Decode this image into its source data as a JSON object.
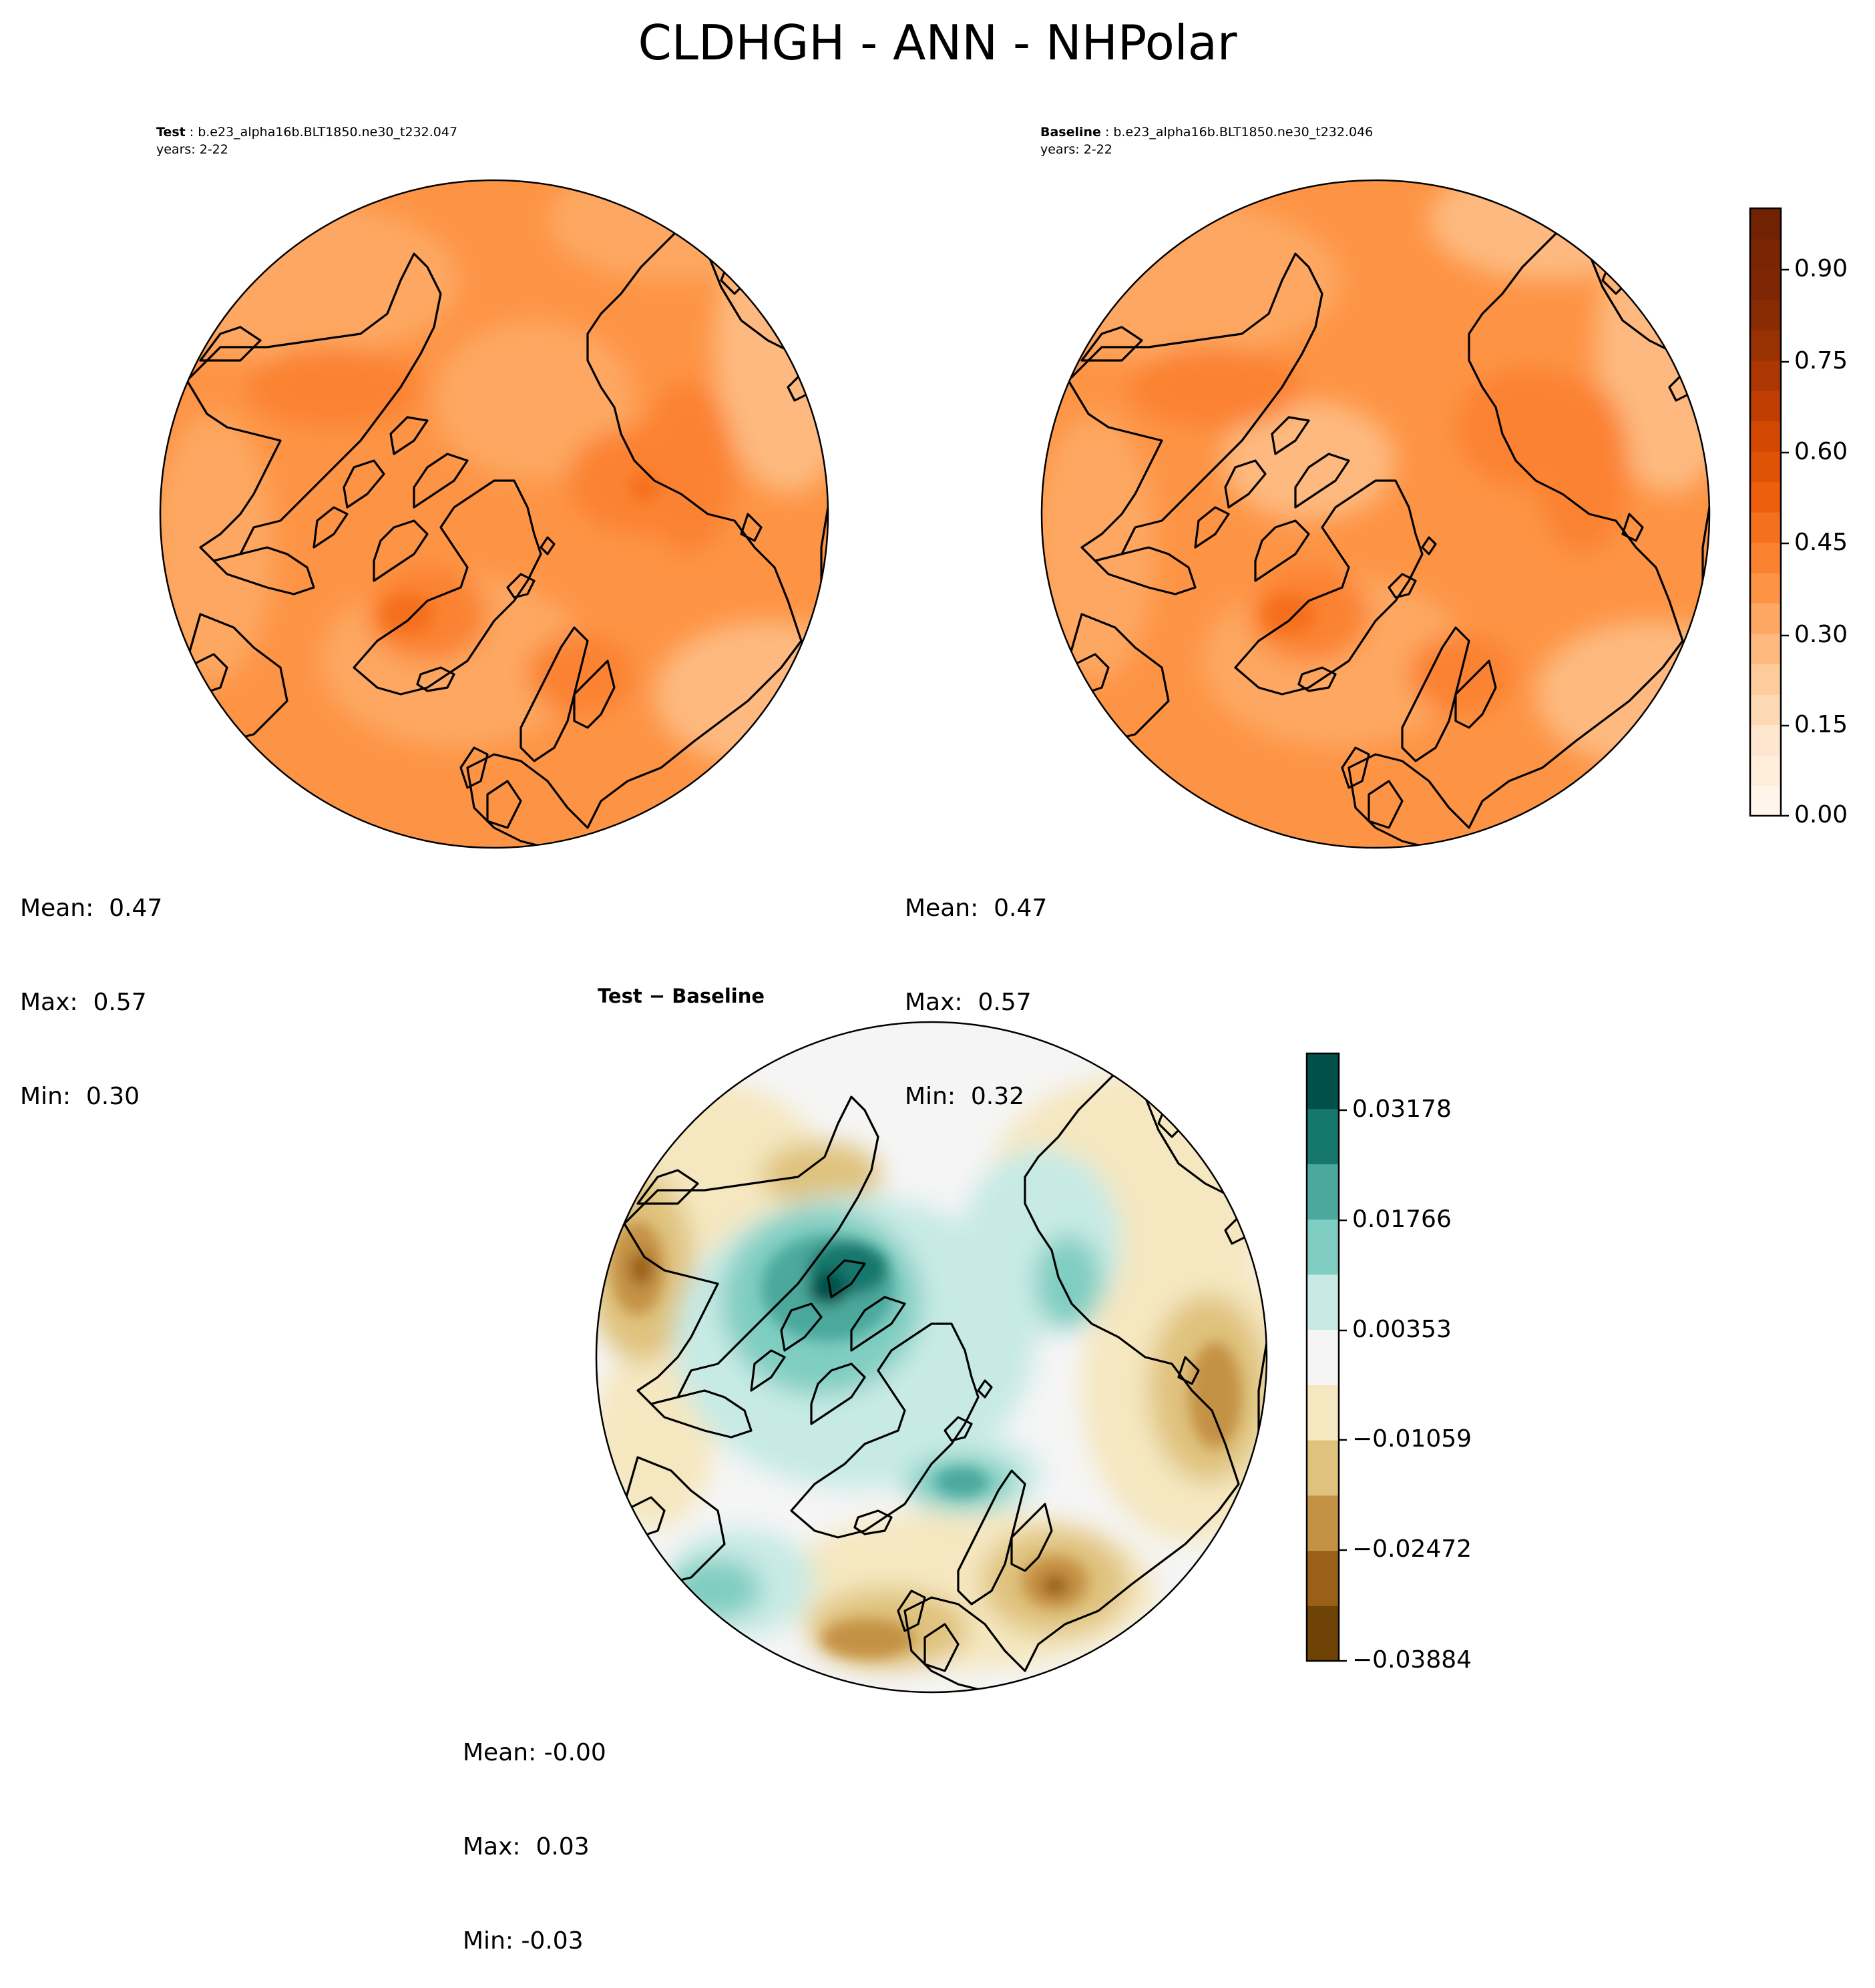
{
  "figure": {
    "title": "CLDHGH - ANN - NHPolar"
  },
  "panels": {
    "test": {
      "label": "Test",
      "case": "b.e23_alpha16b.BLT1850.ne30_t232.047",
      "years": "years: 2-22",
      "stats": {
        "mean": "Mean:  0.47",
        "max": "Max:  0.57",
        "min": "Min:  0.30"
      }
    },
    "baseline": {
      "label": "Baseline",
      "case": "b.e23_alpha16b.BLT1850.ne30_t232.046",
      "years": "years: 2-22",
      "stats": {
        "mean": "Mean:  0.47",
        "max": "Max:  0.57",
        "min": "Min:  0.32"
      }
    },
    "diff": {
      "title": "Test − Baseline",
      "stats": {
        "mean": "Mean: -0.00",
        "max": "Max:  0.03",
        "min": "Min: -0.03"
      }
    }
  },
  "colorbars": {
    "main": {
      "ticks": [
        "0.90",
        "0.75",
        "0.60",
        "0.45",
        "0.30",
        "0.15",
        "0.00"
      ],
      "levels": 20,
      "range": [
        0.0,
        1.0
      ],
      "colors": [
        "#fff5eb",
        "#ffeeda",
        "#fee6ce",
        "#fdd9b4",
        "#fdcc9a",
        "#fdb97f",
        "#fda762",
        "#fd9445",
        "#fb8230",
        "#f5701d",
        "#ed5f0c",
        "#e05206",
        "#d24803",
        "#c03e02",
        "#ac3702",
        "#9a3103",
        "#8a2c03",
        "#7f2704",
        "#7a2503",
        "#712203"
      ]
    },
    "diff": {
      "ticks": [
        "0.03178",
        "0.01766",
        "0.00353",
        "−0.01059",
        "−0.02472",
        "−0.03884"
      ],
      "levels": 11,
      "colors": [
        "#6f4206",
        "#9a6018",
        "#c49245",
        "#dfc27d",
        "#f5e7c0",
        "#f5f5f5",
        "#c7eae5",
        "#80cdc1",
        "#4ba89c",
        "#16776c",
        "#01514a"
      ]
    }
  }
}
